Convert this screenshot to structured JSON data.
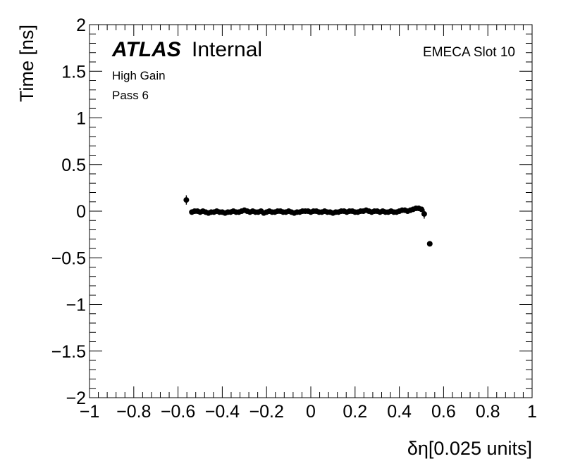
{
  "chart_data": {
    "type": "scatter",
    "title": "",
    "xlabel": "δη[0.025 units]",
    "ylabel": "Time [ns]",
    "xlim": [
      -1,
      1
    ],
    "ylim": [
      -2,
      2
    ],
    "x_ticks": [
      "−1",
      "−0.8",
      "−0.6",
      "−0.4",
      "−0.2",
      "0",
      "0.2",
      "0.4",
      "0.6",
      "0.8",
      "1"
    ],
    "y_ticks": [
      "2",
      "1.5",
      "1",
      "0.5",
      "0",
      "−0.5",
      "−1",
      "−1.5",
      "−2"
    ],
    "grid": false,
    "legend": "none",
    "annotations": {
      "experiment": "ATLAS",
      "status": "Internal",
      "gain": "High Gain",
      "pass": "Pass 6",
      "slot": "EMECA Slot 10"
    },
    "marker_color": "#000000",
    "series": [
      {
        "x": [
          -0.5625,
          -0.5375,
          -0.525,
          -0.5125,
          -0.5,
          -0.4875,
          -0.475,
          -0.4625,
          -0.45,
          -0.4375,
          -0.425,
          -0.4125,
          -0.4,
          -0.3875,
          -0.375,
          -0.3625,
          -0.35,
          -0.3375,
          -0.325,
          -0.3125,
          -0.3,
          -0.2875,
          -0.275,
          -0.2625,
          -0.25,
          -0.2375,
          -0.225,
          -0.2125,
          -0.2,
          -0.1875,
          -0.175,
          -0.1625,
          -0.15,
          -0.1375,
          -0.125,
          -0.1125,
          -0.1,
          -0.0875,
          -0.075,
          -0.0625,
          -0.05,
          -0.0375,
          -0.025,
          -0.0125,
          0.0,
          0.0125,
          0.025,
          0.0375,
          0.05,
          0.0625,
          0.075,
          0.0875,
          0.1,
          0.1125,
          0.125,
          0.1375,
          0.15,
          0.1625,
          0.175,
          0.1875,
          0.2,
          0.2125,
          0.225,
          0.2375,
          0.25,
          0.2625,
          0.275,
          0.2875,
          0.3,
          0.3125,
          0.325,
          0.3375,
          0.35,
          0.3625,
          0.375,
          0.3875,
          0.4,
          0.4125,
          0.425,
          0.4375,
          0.45,
          0.4625,
          0.475,
          0.4875,
          0.5,
          0.5125,
          0.5375
        ],
        "y": [
          0.12,
          -0.01,
          0.0,
          0.0,
          -0.01,
          0.0,
          -0.01,
          -0.02,
          -0.01,
          -0.01,
          0.0,
          -0.01,
          -0.01,
          -0.02,
          -0.01,
          -0.01,
          0.0,
          -0.01,
          -0.01,
          0.0,
          0.01,
          0.0,
          -0.01,
          0.0,
          -0.01,
          -0.01,
          0.0,
          -0.02,
          -0.01,
          0.0,
          -0.01,
          -0.01,
          0.0,
          0.0,
          -0.01,
          -0.01,
          0.0,
          -0.01,
          -0.02,
          -0.01,
          -0.01,
          0.0,
          0.0,
          0.0,
          -0.01,
          0.0,
          0.0,
          -0.01,
          -0.01,
          0.0,
          -0.01,
          -0.01,
          -0.02,
          -0.01,
          -0.01,
          0.0,
          0.0,
          -0.01,
          0.0,
          0.0,
          -0.01,
          -0.01,
          0.0,
          0.0,
          0.01,
          0.0,
          -0.01,
          0.0,
          0.0,
          -0.01,
          0.0,
          -0.01,
          -0.01,
          0.0,
          -0.01,
          -0.01,
          0.0,
          0.01,
          0.01,
          0.0,
          0.01,
          0.02,
          0.03,
          0.03,
          0.02,
          -0.03,
          -0.35
        ],
        "yerr": [
          0.05,
          0.02,
          0.015,
          0.015,
          0.015,
          0.015,
          0.015,
          0.015,
          0.015,
          0.015,
          0.015,
          0.015,
          0.015,
          0.015,
          0.015,
          0.015,
          0.015,
          0.015,
          0.015,
          0.015,
          0.015,
          0.015,
          0.015,
          0.015,
          0.015,
          0.015,
          0.015,
          0.015,
          0.015,
          0.015,
          0.015,
          0.015,
          0.015,
          0.015,
          0.015,
          0.015,
          0.015,
          0.015,
          0.015,
          0.015,
          0.015,
          0.015,
          0.015,
          0.015,
          0.015,
          0.015,
          0.015,
          0.015,
          0.015,
          0.015,
          0.015,
          0.015,
          0.015,
          0.015,
          0.015,
          0.015,
          0.015,
          0.015,
          0.015,
          0.015,
          0.015,
          0.015,
          0.015,
          0.015,
          0.015,
          0.015,
          0.015,
          0.015,
          0.015,
          0.015,
          0.015,
          0.015,
          0.015,
          0.015,
          0.015,
          0.015,
          0.015,
          0.015,
          0.015,
          0.015,
          0.015,
          0.02,
          0.02,
          0.02,
          0.02,
          0.05,
          0.02
        ]
      }
    ]
  }
}
